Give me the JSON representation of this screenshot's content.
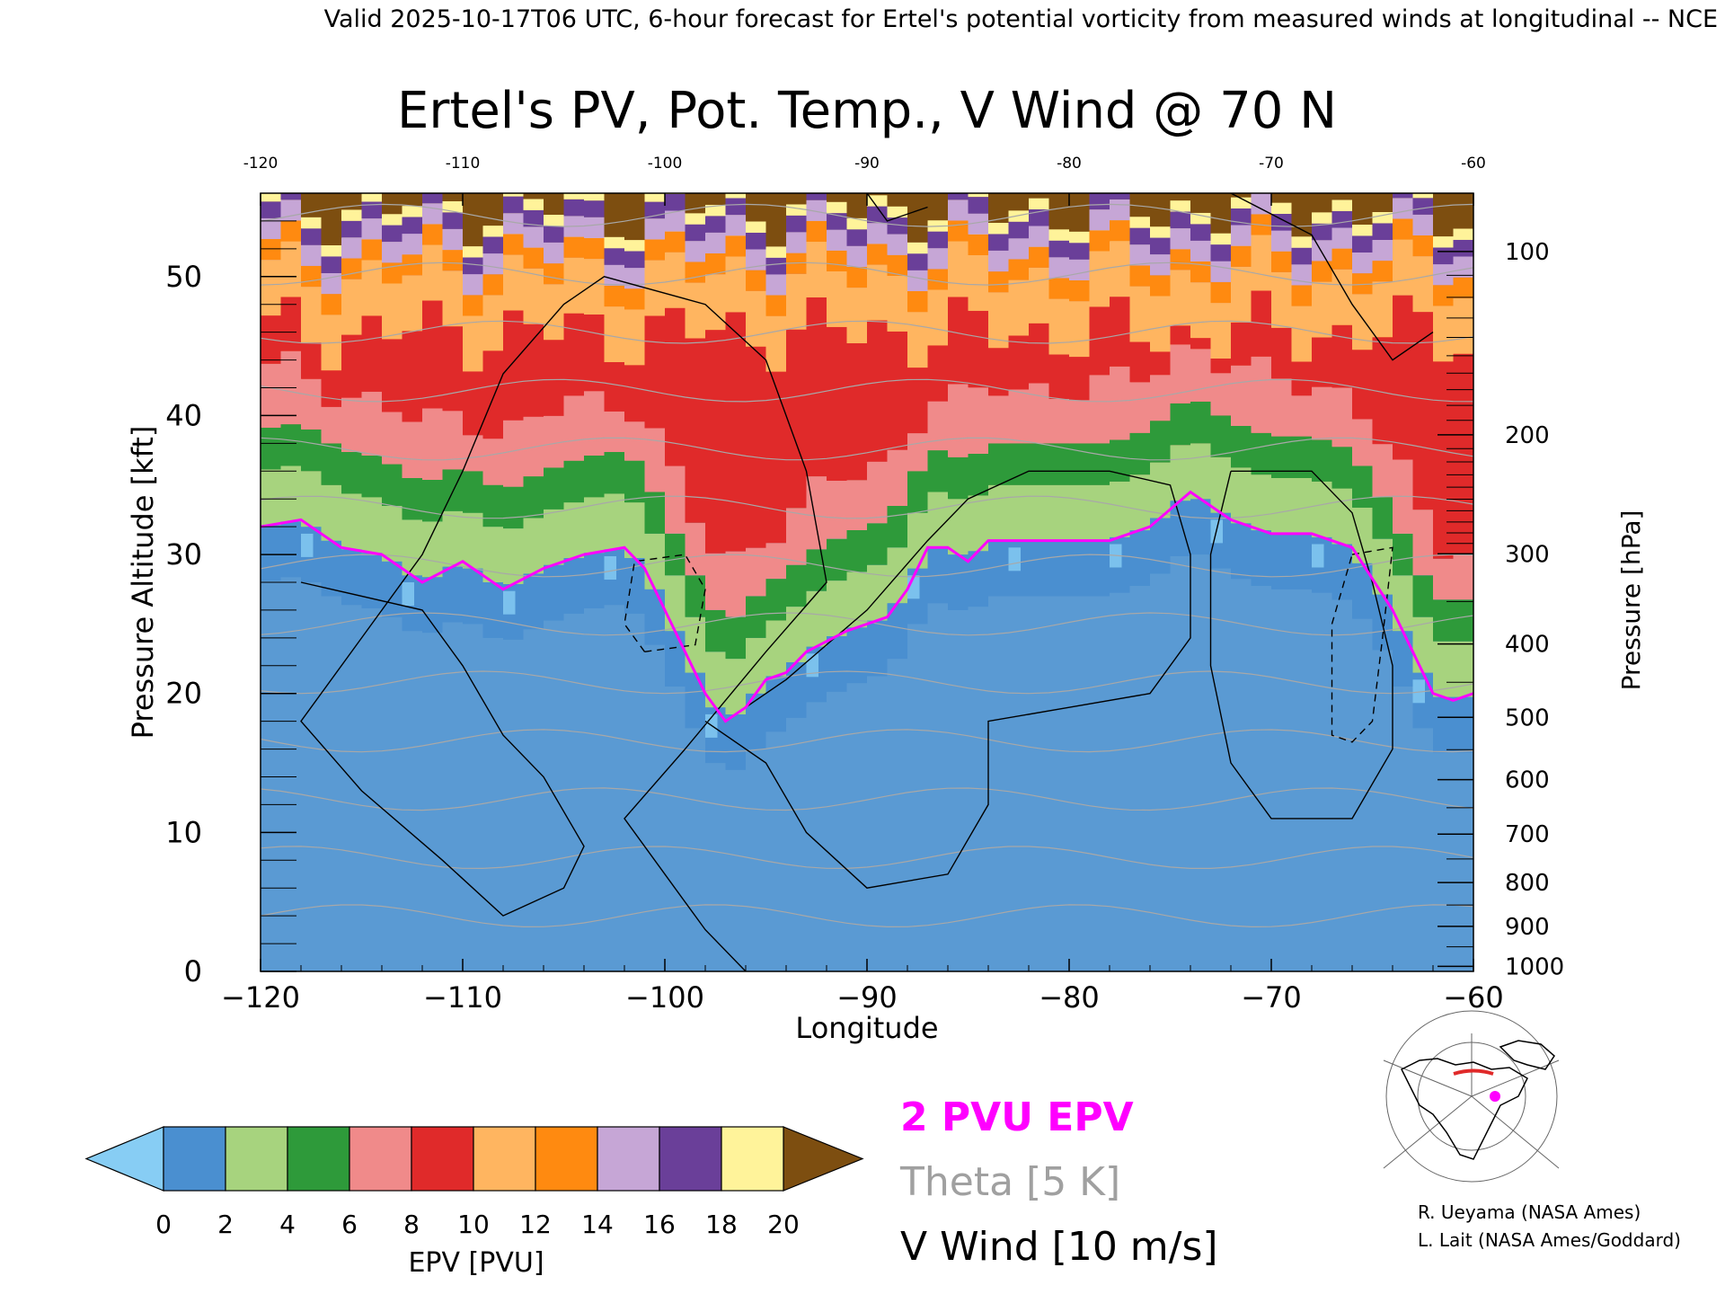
{
  "header": "Valid 2025-10-17T06 UTC, 6-hour forecast for Ertel's potential vorticity from measured winds at longitudinal -- NCE",
  "chart_data": {
    "type": "heatmap",
    "title": "Ertel's PV, Pot. Temp., V Wind @ 70 N",
    "xlabel": "Longitude",
    "ylabel": "Pressure Altitude [kft]",
    "y2label": "Pressure [hPa]",
    "xlim": [
      -120,
      -60
    ],
    "ylim": [
      0,
      56
    ],
    "x_ticks": [
      -120,
      -110,
      -100,
      -90,
      -80,
      -70,
      -60
    ],
    "x_tick_labels": [
      "−120",
      "−110",
      "−100",
      "−90",
      "−80",
      "−70",
      "−60"
    ],
    "x_top_tick_labels": [
      "-120",
      "-110",
      "-100",
      "-90",
      "-80",
      "-70",
      "-60"
    ],
    "y_ticks": [
      0,
      10,
      20,
      30,
      40,
      50
    ],
    "y_tick_labels": [
      "0",
      "10",
      "20",
      "30",
      "40",
      "50"
    ],
    "pressure_ticks": [
      {
        "hPa": 100,
        "label": "100"
      },
      {
        "hPa": 200,
        "label": "200"
      },
      {
        "hPa": 300,
        "label": "300"
      },
      {
        "hPa": 400,
        "label": "400"
      },
      {
        "hPa": 500,
        "label": "500"
      },
      {
        "hPa": 600,
        "label": "600"
      },
      {
        "hPa": 700,
        "label": "700"
      },
      {
        "hPa": 800,
        "label": "800"
      },
      {
        "hPa": 900,
        "label": "900"
      },
      {
        "hPa": 1000,
        "label": "1000"
      }
    ],
    "colorbar": {
      "label": "EPV [PVU]",
      "min": 0,
      "max": 20,
      "step": 2,
      "tick_labels": [
        "0",
        "2",
        "4",
        "6",
        "8",
        "10",
        "12",
        "14",
        "16",
        "18",
        "20"
      ],
      "colors": [
        "#4a8fd0",
        "#a7d37e",
        "#2e9a3a",
        "#f08a8a",
        "#e02a2a",
        "#ffb560",
        "#ff8a10",
        "#c6a6d6",
        "#6a3f99",
        "#fff39a"
      ],
      "under_color": "#87cdf4",
      "over_color": "#7d4e10"
    },
    "tropopause_2pvu_kft": [
      [
        -120,
        32
      ],
      [
        -118,
        32.5
      ],
      [
        -116,
        30.5
      ],
      [
        -114,
        30
      ],
      [
        -112,
        28
      ],
      [
        -110,
        29.5
      ],
      [
        -108,
        27.5
      ],
      [
        -106,
        29
      ],
      [
        -104,
        30
      ],
      [
        -102,
        30.5
      ],
      [
        -101,
        29
      ],
      [
        -100,
        26
      ],
      [
        -99,
        23
      ],
      [
        -98,
        20
      ],
      [
        -97,
        18
      ],
      [
        -96,
        19
      ],
      [
        -95,
        21
      ],
      [
        -94,
        21.5
      ],
      [
        -93,
        23
      ],
      [
        -91,
        24.5
      ],
      [
        -89,
        25.5
      ],
      [
        -88,
        27.5
      ],
      [
        -87,
        30.5
      ],
      [
        -86,
        30.5
      ],
      [
        -85,
        29.5
      ],
      [
        -84,
        31
      ],
      [
        -82,
        31
      ],
      [
        -80,
        31
      ],
      [
        -78,
        31
      ],
      [
        -76,
        32
      ],
      [
        -74,
        34.5
      ],
      [
        -72,
        32.5
      ],
      [
        -70,
        31.5
      ],
      [
        -68,
        31.5
      ],
      [
        -66,
        30.5
      ],
      [
        -64,
        26
      ],
      [
        -63,
        23
      ],
      [
        -62,
        20
      ],
      [
        -61,
        19.5
      ],
      [
        -60,
        20
      ]
    ],
    "theta_levels_K": [
      300,
      310,
      320,
      330,
      340,
      350,
      360,
      370,
      380,
      390,
      400,
      410,
      420
    ],
    "v_wind_contours_m_s": [
      -10,
      0,
      10
    ],
    "legend": {
      "pvu": "2 PVU EPV",
      "pvu_color": "#ff00ff",
      "theta": "Theta [5 K]",
      "theta_color": "#a0a0a0",
      "wind": "V Wind [10 m/s]",
      "wind_color": "#000000"
    }
  },
  "credits": {
    "line1": "R. Ueyama (NASA Ames)",
    "line2": "L. Lait (NASA Ames/Goddard)"
  }
}
